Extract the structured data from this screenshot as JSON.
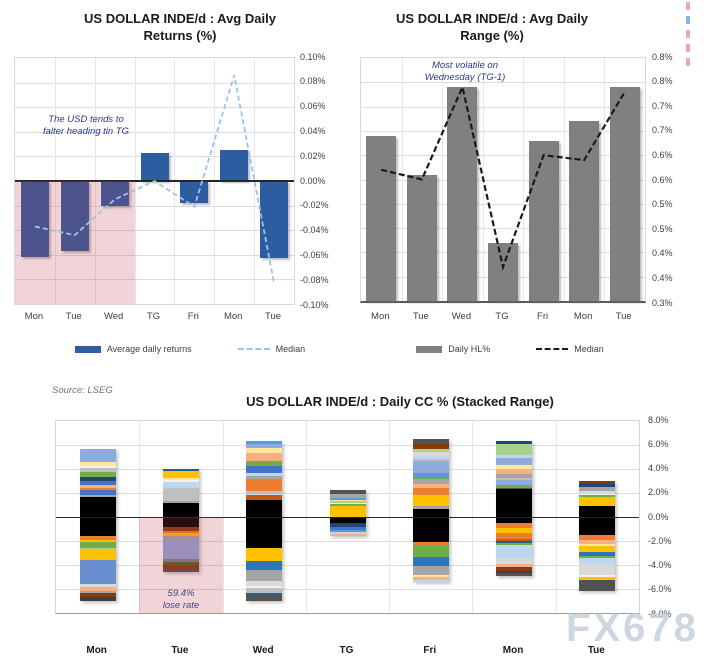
{
  "watermark": "FX678",
  "edge_marks": [
    "#f2a6b0",
    "#8ab4d8",
    "#f2a6b0",
    "#f2a6b0",
    "#f2a6b0"
  ],
  "chart_data": [
    {
      "type": "bar",
      "title": "US DOLLAR INDE/d : Avg Daily Returns (%)",
      "title_lines": [
        "US DOLLAR INDE/d : Avg Daily",
        "Returns (%)"
      ],
      "categories": [
        "Mon",
        "Tue",
        "Wed",
        "TG",
        "Fri",
        "Mon",
        "Tue"
      ],
      "ylim": [
        -0.1,
        0.1
      ],
      "y_tick_labels": [
        "0.10%",
        "0.08%",
        "0.06%",
        "0.04%",
        "0.02%",
        "0.00%",
        "-0.02%",
        "-0.04%",
        "-0.06%",
        "-0.08%",
        "-0.10%"
      ],
      "grid": true,
      "legend_position": "bottom",
      "series": [
        {
          "name": "Average daily returns",
          "kind": "bar",
          "color": "#2E5CA0",
          "values": [
            -0.062,
            -0.057,
            -0.02,
            0.023,
            -0.018,
            0.025,
            -0.063
          ]
        },
        {
          "name": "Median",
          "kind": "dashed-line",
          "color": "#9DC3E6",
          "values": [
            -0.037,
            -0.044,
            -0.015,
            0.0,
            -0.021,
            0.086,
            -0.083
          ]
        }
      ],
      "annotation": {
        "lines": [
          "The USD tends to",
          "falter heading tin TG"
        ],
        "color": "#2F3699"
      },
      "highlight": {
        "columns": [
          "Mon",
          "Tue",
          "Wed"
        ],
        "area": "below zero",
        "color": "rgba(190,60,75,0.22)"
      }
    },
    {
      "type": "bar",
      "title": "US DOLLAR INDE/d : Avg Daily Range (%)",
      "title_lines": [
        "US DOLLAR INDE/d : Avg Daily",
        "Range (%)"
      ],
      "categories": [
        "Mon",
        "Tue",
        "Wed",
        "TG",
        "Fri",
        "Mon",
        "Tue"
      ],
      "ylim": [
        0.3,
        0.8
      ],
      "y_tick_labels": [
        "0.8%",
        "0.8%",
        "0.7%",
        "0.7%",
        "0.6%",
        "0.6%",
        "0.5%",
        "0.5%",
        "0.4%",
        "0.4%",
        "0.3%"
      ],
      "grid": true,
      "legend_position": "bottom",
      "series": [
        {
          "name": "Daily HL%",
          "kind": "bar",
          "color": "#808080",
          "values": [
            0.64,
            0.56,
            0.74,
            0.42,
            0.63,
            0.67,
            0.74
          ]
        },
        {
          "name": "Median",
          "kind": "dashed-line",
          "color": "#1a1a1a",
          "values": [
            0.57,
            0.55,
            0.74,
            0.37,
            0.6,
            0.59,
            0.73
          ]
        }
      ],
      "annotation": {
        "lines": [
          "Most volatile on",
          "Wednesday (TG-1)"
        ],
        "color": "#2F3699"
      }
    },
    {
      "type": "bar-stacked",
      "title": "US DOLLAR INDE/d : Daily CC % (Stacked Range)",
      "source": "Source: LSEG",
      "categories": [
        "Mon",
        "Tue",
        "Wed",
        "TG",
        "Fri",
        "Mon",
        "Tue"
      ],
      "ylim": [
        -8,
        8
      ],
      "y_tick_labels": [
        "8.0%",
        "6.0%",
        "4.0%",
        "2.0%",
        "0.0%",
        "-2.0%",
        "-4.0%",
        "-6.0%",
        "-8.0%"
      ],
      "grid": true,
      "annotation": {
        "lines": [
          "59.4%",
          "lose rate"
        ],
        "color": "#4a4585"
      },
      "highlight": {
        "columns": [
          "Tue"
        ],
        "area": "below zero",
        "color": "rgba(190,60,75,0.22)"
      },
      "bars": [
        {
          "category": "Mon",
          "total_up": 5.7,
          "total_down": -7.0,
          "up": [
            [
              "#8FAADC",
              1.15
            ],
            [
              "#FFE699",
              0.3
            ],
            [
              "#F2F2F2",
              0.2
            ],
            [
              "#BFBFBF",
              0.3
            ],
            [
              "#70AD47",
              0.4
            ],
            [
              "#264478",
              0.35
            ],
            [
              "#4472C4",
              0.3
            ],
            [
              "#F4B183",
              0.25
            ],
            [
              "#ED7D31",
              0.2
            ],
            [
              "#4472C4",
              0.45
            ],
            [
              "#A5A5A5",
              0.15
            ],
            [
              "#000000",
              1.65
            ]
          ],
          "down": [
            [
              "#000000",
              1.6
            ],
            [
              "#ED7D31",
              0.3
            ],
            [
              "#FFC000",
              0.2
            ],
            [
              "#70AD47",
              0.5
            ],
            [
              "#A9D18E",
              0.15
            ],
            [
              "#FFC000",
              0.85
            ],
            [
              "#698ED0",
              2.0
            ],
            [
              "#D9D9D9",
              0.2
            ],
            [
              "#F4B183",
              0.35
            ],
            [
              "#A5A5A5",
              0.15
            ],
            [
              "#843C0C",
              0.35
            ],
            [
              "#404040",
              0.35
            ]
          ]
        },
        {
          "category": "Tue",
          "total_up": 4.0,
          "total_down": -4.6,
          "up": [
            [
              "#255E91",
              0.2
            ],
            [
              "#FFC000",
              0.55
            ],
            [
              "#FFE699",
              0.2
            ],
            [
              "#F2F2F2",
              0.15
            ],
            [
              "#BDD7EE",
              0.45
            ],
            [
              "#BFBFBF",
              1.1
            ],
            [
              "#A5A5A5",
              0.15
            ],
            [
              "#000000",
              1.2
            ]
          ],
          "down": [
            [
              "#000000",
              0.85
            ],
            [
              "#843C0C",
              0.3
            ],
            [
              "#ED7D31",
              0.2
            ],
            [
              "#FFC000",
              0.25
            ],
            [
              "#A5A5A5",
              0.2
            ],
            [
              "#8FAADC",
              1.7
            ],
            [
              "#7F7F7F",
              0.25
            ],
            [
              "#4F6228",
              0.25
            ],
            [
              "#843C0C",
              0.3
            ],
            [
              "#525252",
              0.3
            ]
          ]
        },
        {
          "category": "Wed",
          "total_up": 6.3,
          "total_down": -7.0,
          "up": [
            [
              "#5B9BD5",
              0.25
            ],
            [
              "#8FAADC",
              0.3
            ],
            [
              "#FFE699",
              0.45
            ],
            [
              "#F4B183",
              0.6
            ],
            [
              "#70AD47",
              0.45
            ],
            [
              "#4472C4",
              0.55
            ],
            [
              "#BDD7EE",
              0.3
            ],
            [
              "#A5A5A5",
              0.2
            ],
            [
              "#ED7D31",
              1.0
            ],
            [
              "#BFBFBF",
              0.25
            ],
            [
              "#D9D9D9",
              0.15
            ],
            [
              "#C55A11",
              0.35
            ],
            [
              "#000000",
              1.45
            ]
          ],
          "down": [
            [
              "#000000",
              2.6
            ],
            [
              "#FFC000",
              1.1
            ],
            [
              "#2E75B6",
              0.7
            ],
            [
              "#A5A5A5",
              0.95
            ],
            [
              "#D9D9D9",
              0.4
            ],
            [
              "#F2F2F2",
              0.15
            ],
            [
              "#BFBFBF",
              0.45
            ],
            [
              "#255E91",
              0.15
            ],
            [
              "#525252",
              0.5
            ]
          ]
        },
        {
          "category": "TG",
          "total_up": 2.25,
          "total_down": -1.6,
          "up": [
            [
              "#525252",
              0.35
            ],
            [
              "#A5A5A5",
              0.3
            ],
            [
              "#5B9BD5",
              0.15
            ],
            [
              "#FFE699",
              0.15
            ],
            [
              "#A9D18E",
              0.15
            ],
            [
              "#F2F2F2",
              0.1
            ],
            [
              "#70AD47",
              0.15
            ],
            [
              "#FFC000",
              0.9
            ]
          ],
          "down": [
            [
              "#000000",
              0.5
            ],
            [
              "#264478",
              0.3
            ],
            [
              "#4472C4",
              0.25
            ],
            [
              "#5B9BD5",
              0.2
            ],
            [
              "#BDD7EE",
              0.15
            ],
            [
              "#F4B183",
              0.2
            ]
          ]
        },
        {
          "category": "Fri",
          "total_up": 6.5,
          "total_down": -5.4,
          "up": [
            [
              "#525252",
              0.45
            ],
            [
              "#843C0C",
              0.35
            ],
            [
              "#A9D18E",
              0.3
            ],
            [
              "#D9D9D9",
              0.3
            ],
            [
              "#BDD7EE",
              0.25
            ],
            [
              "#BFBFBF",
              0.2
            ],
            [
              "#8FAADC",
              1.0
            ],
            [
              "#5B9BD5",
              0.35
            ],
            [
              "#70AD47",
              0.1
            ],
            [
              "#A5A5A5",
              0.45
            ],
            [
              "#F4B183",
              0.35
            ],
            [
              "#ED7D31",
              0.55
            ],
            [
              "#FFC000",
              0.95
            ],
            [
              "#A5A5A5",
              0.2
            ],
            [
              "#000000",
              0.7
            ]
          ],
          "down": [
            [
              "#000000",
              2.1
            ],
            [
              "#ED7D31",
              0.25
            ],
            [
              "#70AD47",
              1.0
            ],
            [
              "#2E75B6",
              0.75
            ],
            [
              "#A5A5A5",
              0.75
            ],
            [
              "#FFE699",
              0.15
            ],
            [
              "#F4B183",
              0.25
            ],
            [
              "#BDD7EE",
              0.15
            ]
          ]
        },
        {
          "category": "Mon",
          "total_up": 6.3,
          "total_down": -4.9,
          "up": [
            [
              "#264478",
              0.25
            ],
            [
              "#A9D18E",
              0.85
            ],
            [
              "#BDD7EE",
              0.3
            ],
            [
              "#8FAADC",
              0.55
            ],
            [
              "#FFE699",
              0.35
            ],
            [
              "#F4B183",
              0.45
            ],
            [
              "#A5A5A5",
              0.3
            ],
            [
              "#BFBFBF",
              0.2
            ],
            [
              "#8FAADC",
              0.4
            ],
            [
              "#70AD47",
              0.2
            ],
            [
              "#525252",
              0.15
            ],
            [
              "#000000",
              2.3
            ]
          ],
          "down": [
            [
              "#000000",
              0.5
            ],
            [
              "#ED7D31",
              0.45
            ],
            [
              "#FFC000",
              0.35
            ],
            [
              "#ED7D31",
              0.5
            ],
            [
              "#C55A11",
              0.2
            ],
            [
              "#255E91",
              0.2
            ],
            [
              "#70AD47",
              0.15
            ],
            [
              "#BDD7EE",
              1.05
            ],
            [
              "#D9D9D9",
              0.55
            ],
            [
              "#F4B183",
              0.25
            ],
            [
              "#843C0C",
              0.3
            ],
            [
              "#404040",
              0.2
            ],
            [
              "#525252",
              0.2
            ]
          ]
        },
        {
          "category": "Tue",
          "total_up": 3.0,
          "total_down": -6.2,
          "up": [
            [
              "#843C0C",
              0.25
            ],
            [
              "#264478",
              0.25
            ],
            [
              "#A5A5A5",
              0.35
            ],
            [
              "#D9D9D9",
              0.2
            ],
            [
              "#F2F2F2",
              0.15
            ],
            [
              "#70AD47",
              0.15
            ],
            [
              "#FFC000",
              0.75
            ],
            [
              "#000000",
              0.9
            ]
          ],
          "down": [
            [
              "#000000",
              1.5
            ],
            [
              "#ED7D31",
              0.4
            ],
            [
              "#F4B183",
              0.35
            ],
            [
              "#FFE699",
              0.2
            ],
            [
              "#FFC000",
              0.45
            ],
            [
              "#2E75B6",
              0.35
            ],
            [
              "#70AD47",
              0.2
            ],
            [
              "#BDD7EE",
              0.5
            ],
            [
              "#D9D9D9",
              0.85
            ],
            [
              "#F2F2F2",
              0.2
            ],
            [
              "#FFC000",
              0.25
            ],
            [
              "#525252",
              0.95
            ]
          ]
        }
      ]
    }
  ]
}
